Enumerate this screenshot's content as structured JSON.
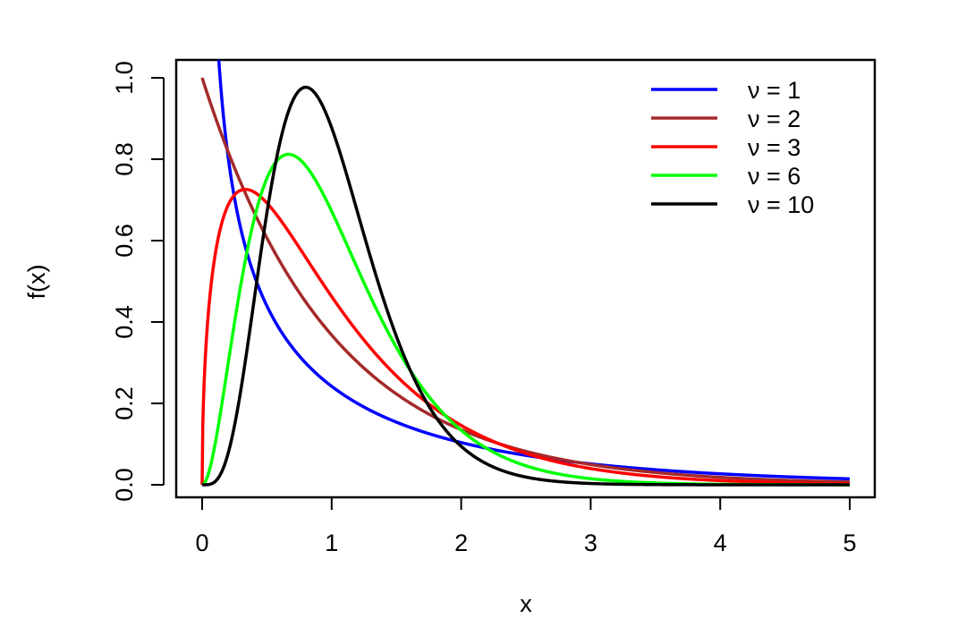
{
  "chart_data": {
    "type": "line",
    "title": "",
    "xlabel": "x",
    "ylabel": "f(x)",
    "xlim": [
      0,
      5
    ],
    "ylim": [
      0,
      1.0
    ],
    "xticks": [
      "0",
      "1",
      "2",
      "3",
      "4",
      "5"
    ],
    "yticks": [
      "0.0",
      "0.2",
      "0.4",
      "0.6",
      "0.8",
      "1.0"
    ],
    "grid": false,
    "legend_placement": "top-right",
    "series": [
      {
        "name": "ν  = 1",
        "nu": 1,
        "color": "#0000ff"
      },
      {
        "name": "ν  = 2",
        "nu": 2,
        "color": "#a52a2a"
      },
      {
        "name": "ν  = 3",
        "nu": 3,
        "color": "#ff0000"
      },
      {
        "name": "ν  = 6",
        "nu": 6,
        "color": "#00ff00"
      },
      {
        "name": "ν  = 10",
        "nu": 10,
        "color": "#000000"
      }
    ]
  }
}
